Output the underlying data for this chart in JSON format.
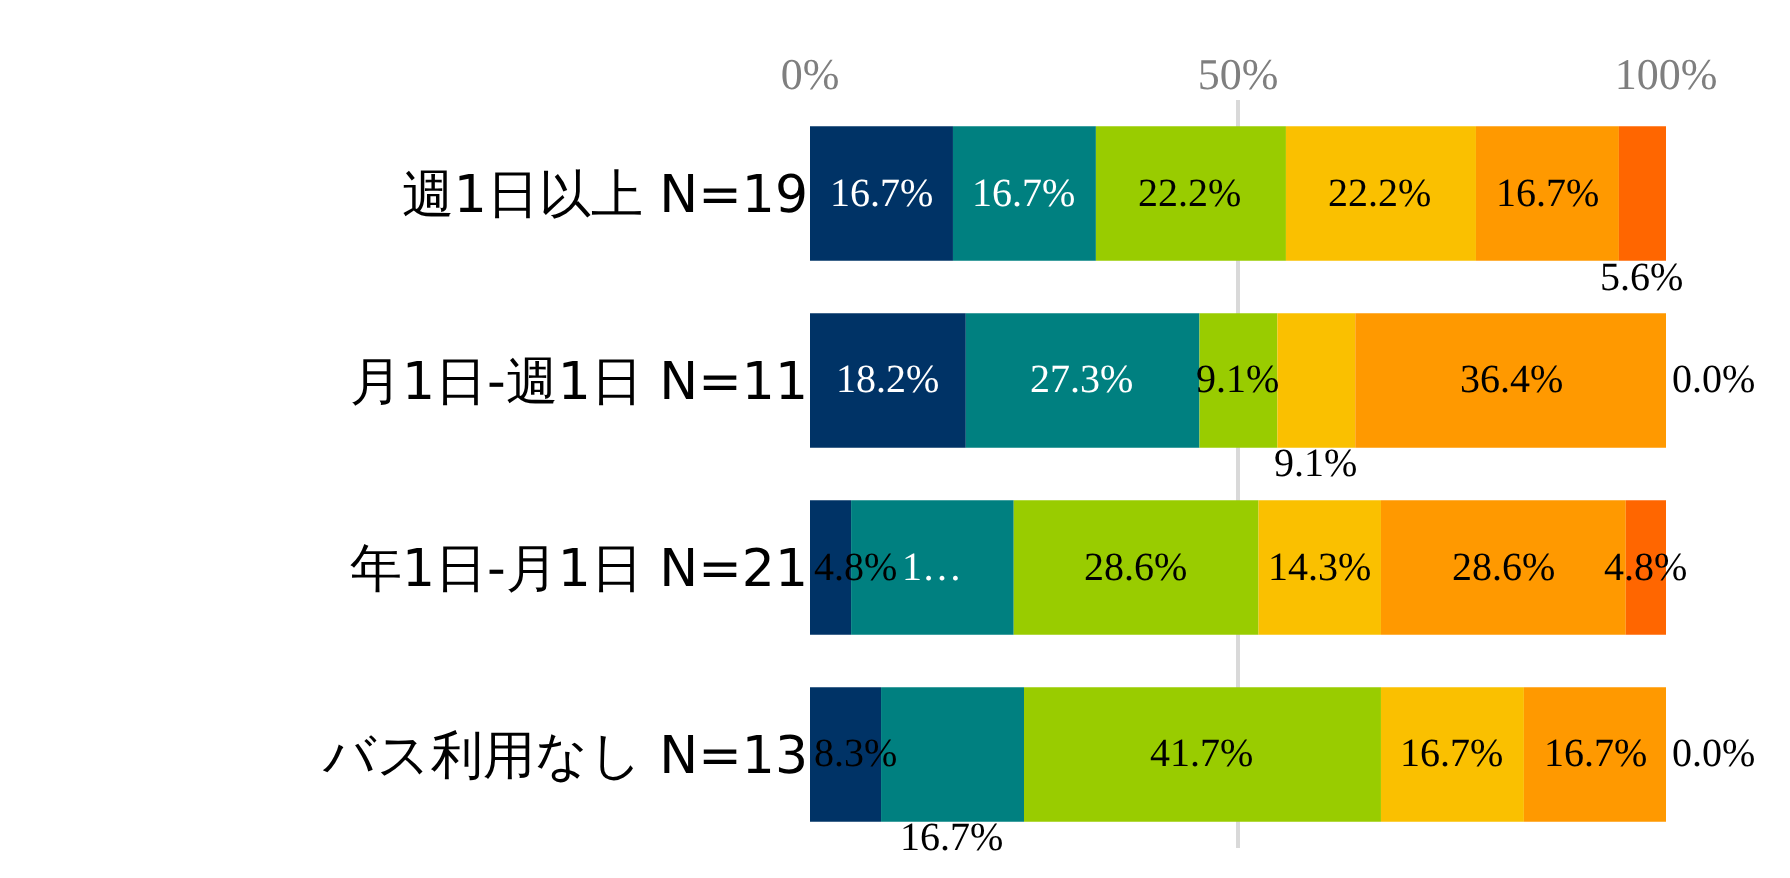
{
  "chart_data": {
    "type": "bar",
    "orientation": "horizontal",
    "stacked": true,
    "categories": [
      "週1日以上 N=19",
      "月1日-週1日 N=11",
      "年1日-月1日 N=21",
      "バス利用なし N=13"
    ],
    "series": [
      {
        "color": "#003366",
        "values": [
          16.7,
          18.2,
          4.8,
          8.3
        ],
        "value_labels": [
          "16.7%",
          "18.2%",
          "4.8%",
          "8.3%"
        ]
      },
      {
        "color": "#008080",
        "values": [
          16.7,
          27.3,
          19.0,
          16.7
        ],
        "value_labels": [
          "16.7%",
          "27.3%",
          "1…",
          "16.7%"
        ]
      },
      {
        "color": "#99cc00",
        "values": [
          22.2,
          9.1,
          28.6,
          41.7
        ],
        "value_labels": [
          "22.2%",
          "9.1%",
          "28.6%",
          "41.7%"
        ]
      },
      {
        "color": "#fac000",
        "values": [
          22.2,
          9.1,
          14.3,
          16.7
        ],
        "value_labels": [
          "22.2%",
          "9.1%",
          "14.3%",
          "16.7%"
        ]
      },
      {
        "color": "#ff9900",
        "values": [
          16.7,
          36.4,
          28.6,
          16.7
        ],
        "value_labels": [
          "16.7%",
          "36.4%",
          "28.6%",
          "16.7%"
        ]
      },
      {
        "color": "#ff6600",
        "values": [
          5.6,
          0.0,
          4.8,
          0.0
        ],
        "value_labels": [
          "5.6%",
          "0.0%",
          "4.8%",
          "0.0%"
        ]
      }
    ],
    "xlim": [
      0,
      100
    ],
    "xticks": [
      {
        "value": 0,
        "label": "0%"
      },
      {
        "value": 50,
        "label": "50%"
      },
      {
        "value": 100,
        "label": "100%"
      }
    ],
    "grid": "x"
  }
}
